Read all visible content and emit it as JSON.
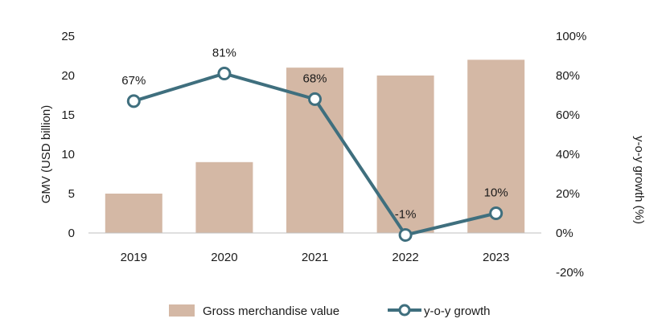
{
  "chart_data": {
    "type": "bar",
    "categories": [
      "2019",
      "2020",
      "2021",
      "2022",
      "2023"
    ],
    "series": [
      {
        "name": "Gross merchandise value",
        "type": "bar",
        "axis": "left",
        "values": [
          5,
          9,
          21,
          20,
          22
        ],
        "color": "#d4b8a5"
      },
      {
        "name": "y-o-y growth",
        "type": "line",
        "axis": "right",
        "values": [
          67,
          81,
          68,
          -1,
          10
        ],
        "labels": [
          "67%",
          "81%",
          "68%",
          "-1%",
          "10%"
        ],
        "color": "#3f6f7e",
        "marker": "hollow-circle"
      }
    ],
    "ylabel": "GMV (USD billion)",
    "y2label": "y-o-y growth (%)",
    "ylim": [
      0,
      25
    ],
    "yticks": [
      "0",
      "5",
      "10",
      "15",
      "20",
      "25"
    ],
    "y2lim": [
      -20,
      100
    ],
    "y2ticks": [
      "-20%",
      "0%",
      "20%",
      "40%",
      "60%",
      "80%",
      "100%"
    ],
    "grid": false,
    "legend_position": "bottom"
  }
}
